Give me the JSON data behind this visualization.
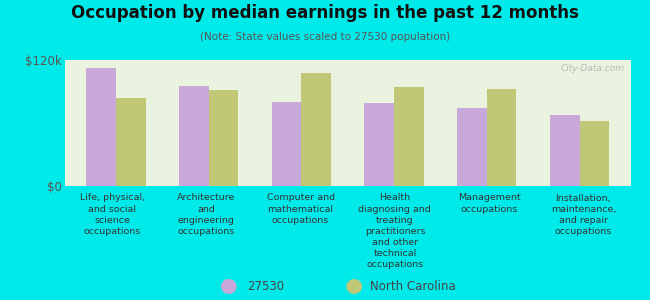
{
  "title": "Occupation by median earnings in the past 12 months",
  "subtitle": "(Note: State values scaled to 27530 population)",
  "background_color": "#00eaea",
  "plot_bg_color": "#eaf2e0",
  "bar_color_27530": "#c8a8d8",
  "bar_color_nc": "#c0c878",
  "ylim": [
    0,
    120000
  ],
  "ytick_labels": [
    "$0",
    "$120k"
  ],
  "categories": [
    "Life, physical,\nand social\nscience\noccupations",
    "Architecture\nand\nengineering\noccupations",
    "Computer and\nmathematical\noccupations",
    "Health\ndiagnosing and\ntreating\npractitioners\nand other\ntechnical\noccupations",
    "Management\noccupations",
    "Installation,\nmaintenance,\nand repair\noccupations"
  ],
  "values_27530": [
    112000,
    95000,
    80000,
    79000,
    74000,
    68000
  ],
  "values_nc": [
    84000,
    91000,
    108000,
    94000,
    92000,
    62000
  ],
  "legend_labels": [
    "27530",
    "North Carolina"
  ],
  "watermark": "City-Data.com"
}
